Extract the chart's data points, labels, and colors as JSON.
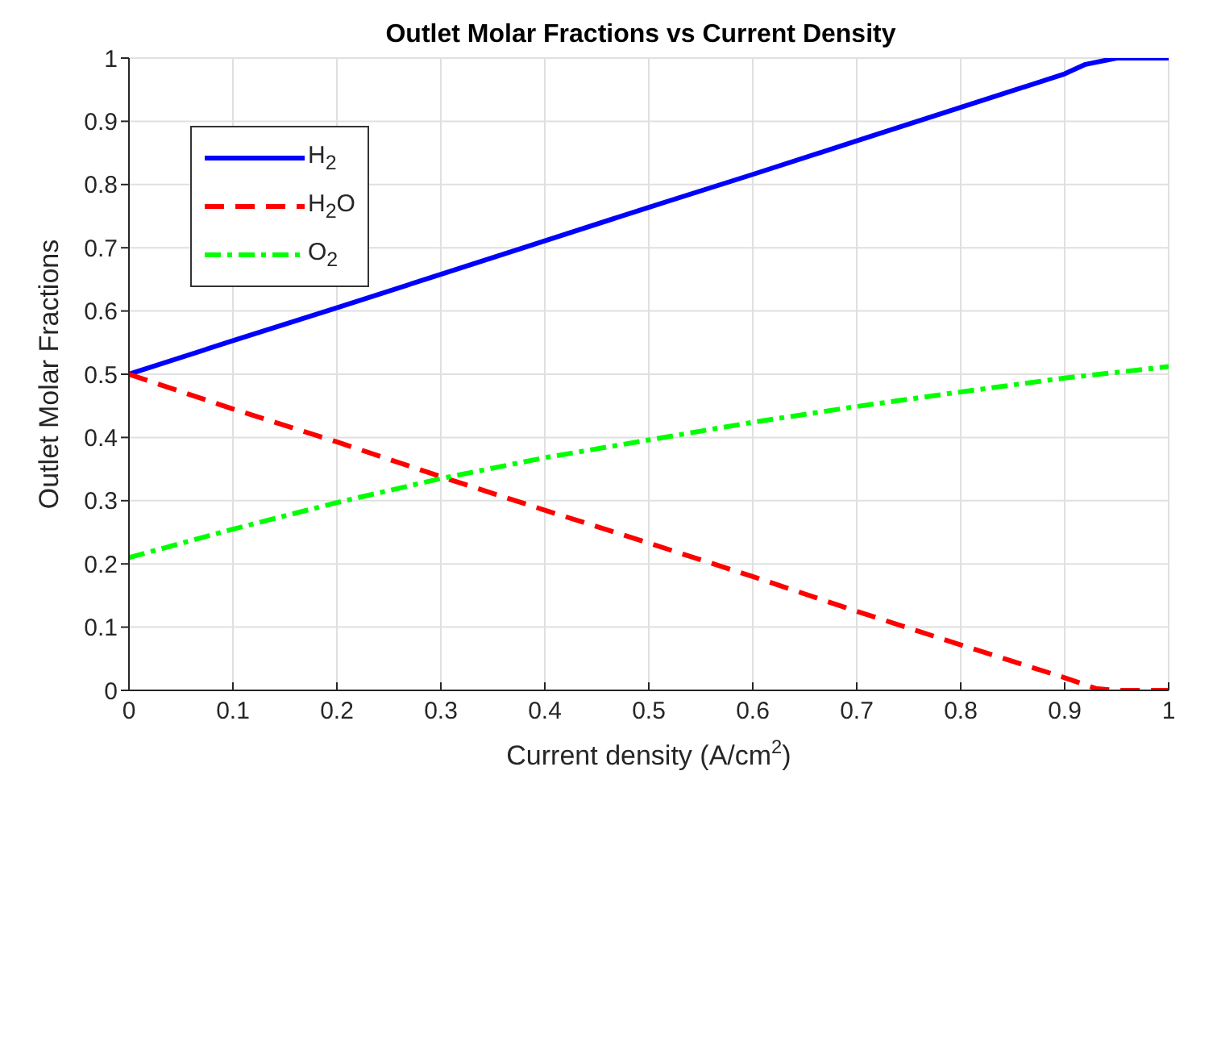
{
  "chart_data": {
    "type": "line",
    "title": "Outlet Molar Fractions vs Current Density",
    "xlabel": "Current density (A/cm$^{2}$)",
    "ylabel": "Outlet Molar Fractions",
    "xlim": [
      0,
      1
    ],
    "ylim": [
      0,
      1
    ],
    "xticks": [
      0,
      0.1,
      0.2,
      0.3,
      0.4,
      0.5,
      0.6,
      0.7,
      0.8,
      0.9,
      1
    ],
    "yticks": [
      0,
      0.1,
      0.2,
      0.3,
      0.4,
      0.5,
      0.6,
      0.7,
      0.8,
      0.9,
      1
    ],
    "grid": true,
    "legend": "top left",
    "marker": "none",
    "series": [
      {
        "name": "H$_{2}$",
        "color": "#0000ff",
        "line_style": "solid",
        "x": [
          0,
          0.1,
          0.2,
          0.3,
          0.4,
          0.5,
          0.6,
          0.7,
          0.8,
          0.9,
          0.92,
          0.95,
          1
        ],
        "values": [
          0.5,
          0.553,
          0.605,
          0.658,
          0.711,
          0.764,
          0.816,
          0.869,
          0.922,
          0.975,
          0.99,
          1,
          1
        ]
      },
      {
        "name": "H$_{2}$O",
        "color": "#ff0000",
        "line_style": "dashed",
        "x": [
          0,
          0.1,
          0.2,
          0.3,
          0.4,
          0.5,
          0.6,
          0.7,
          0.8,
          0.9,
          0.93,
          0.95,
          1
        ],
        "values": [
          0.5,
          0.445,
          0.393,
          0.338,
          0.285,
          0.233,
          0.18,
          0.125,
          0.072,
          0.02,
          0.003,
          0,
          0
        ]
      },
      {
        "name": "O$_{2}$",
        "color": "#00ff00",
        "line_style": "dashdot",
        "x": [
          0,
          0.1,
          0.2,
          0.3,
          0.4,
          0.5,
          0.6,
          0.7,
          0.8,
          0.9,
          1
        ],
        "values": [
          0.21,
          0.255,
          0.297,
          0.335,
          0.368,
          0.396,
          0.424,
          0.449,
          0.472,
          0.494,
          0.512
        ]
      }
    ]
  }
}
